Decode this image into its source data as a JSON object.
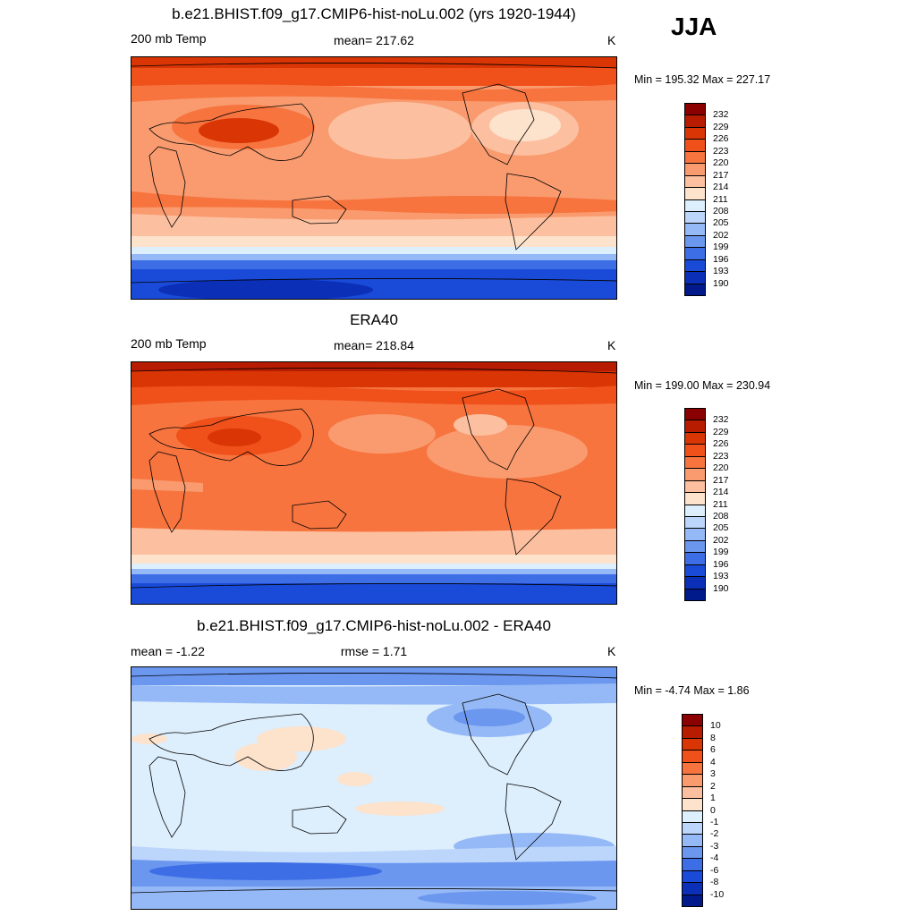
{
  "season": "JJA",
  "panels": [
    {
      "title": "b.e21.BHIST.f09_g17.CMIP6-hist-noLu.002 (yrs 1920-1944)",
      "left_label": "200 mb Temp",
      "center_label": "mean= 217.62",
      "units": "K",
      "minmax": "Min = 195.32 Max = 227.17"
    },
    {
      "title": "ERA40",
      "left_label": "200 mb Temp",
      "center_label": "mean= 218.84",
      "units": "K",
      "minmax": "Min = 199.00 Max = 230.94"
    },
    {
      "title": "b.e21.BHIST.f09_g17.CMIP6-hist-noLu.002 - ERA40",
      "left_label": "mean =  -1.22",
      "center_label": "rmse =   1.71",
      "units": "K",
      "minmax": "Min =  -4.74 Max =   1.86"
    }
  ],
  "colorbars": {
    "temperature": {
      "labels": [
        "232",
        "229",
        "226",
        "223",
        "220",
        "217",
        "214",
        "211",
        "208",
        "205",
        "202",
        "199",
        "196",
        "193",
        "190"
      ],
      "colors": [
        "#8b0000",
        "#b81c00",
        "#d93505",
        "#f0501a",
        "#f7743f",
        "#f99b6f",
        "#fcc0a0",
        "#fde2cc",
        "#ddeefc",
        "#bcd6fb",
        "#95b9f6",
        "#6b97ef",
        "#3d6ee6",
        "#1a4bd8",
        "#0c2fb8",
        "#001a8c"
      ]
    },
    "difference": {
      "labels": [
        "10",
        "8",
        "6",
        "4",
        "3",
        "2",
        "1",
        "0",
        "-1",
        "-2",
        "-3",
        "-4",
        "-6",
        "-8",
        "-10"
      ],
      "colors": [
        "#8b0000",
        "#b81c00",
        "#d93505",
        "#f0501a",
        "#f7743f",
        "#f99b6f",
        "#fcc0a0",
        "#fde2cc",
        "#ddeefc",
        "#bcd6fb",
        "#95b9f6",
        "#6b97ef",
        "#3d6ee6",
        "#1a4bd8",
        "#0c2fb8",
        "#001a8c"
      ]
    }
  }
}
